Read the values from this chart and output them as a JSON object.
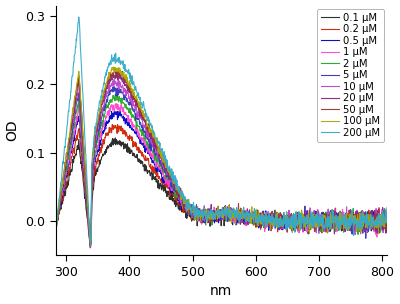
{
  "concentrations": [
    "0.1 μM",
    "0.2 μM",
    "0.5 μM",
    "1 μM",
    "2 μM",
    "5 μM",
    "10 μM",
    "20 μM",
    "50 μM",
    "100 μM",
    "200 μM"
  ],
  "colors": [
    "#222222",
    "#cc2200",
    "#0000cc",
    "#ff44cc",
    "#22aa22",
    "#3333bb",
    "#bb44cc",
    "#882288",
    "#993333",
    "#aaaa00",
    "#33aacc"
  ],
  "peak_heights": [
    0.115,
    0.135,
    0.155,
    0.165,
    0.178,
    0.19,
    0.2,
    0.21,
    0.215,
    0.22,
    0.235
  ],
  "spike_heights": [
    0.115,
    0.135,
    0.155,
    0.165,
    0.178,
    0.19,
    0.2,
    0.21,
    0.215,
    0.22,
    0.3
  ],
  "xlabel": "nm",
  "ylabel": "OD",
  "xlim": [
    283,
    808
  ],
  "ylim": [
    -0.05,
    0.315
  ],
  "yticks": [
    0.0,
    0.1,
    0.2,
    0.3
  ],
  "xticks": [
    300,
    400,
    500,
    600,
    700,
    800
  ],
  "noise_scale": 0.003,
  "background_color": "#ffffff"
}
